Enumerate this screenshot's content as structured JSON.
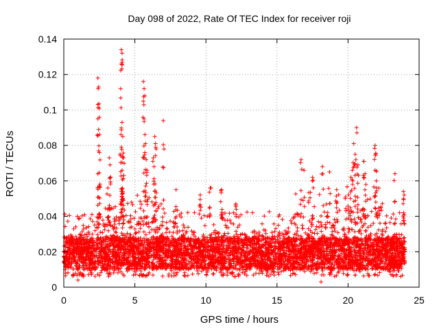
{
  "chart_data": {
    "type": "scatter",
    "title": "Day 098 of 2022, Rate Of TEC Index for receiver roji",
    "xlabel": "GPS time / hours",
    "ylabel": "ROTI / TECUs",
    "xlim": [
      0,
      25
    ],
    "ylim": [
      0,
      0.14
    ],
    "xticks": [
      0,
      5,
      10,
      15,
      20,
      25
    ],
    "xtick_labels": [
      "0",
      "5",
      "10",
      "15",
      "20",
      "25"
    ],
    "yticks": [
      0,
      0.02,
      0.04,
      0.06,
      0.08,
      0.1,
      0.12,
      0.14
    ],
    "ytick_labels": [
      "0",
      "0.02",
      "0.04",
      "0.06",
      "0.08",
      "0.1",
      "0.12",
      "0.14"
    ],
    "grid": true,
    "marker": "+",
    "color": "#ff0000",
    "series": [
      {
        "name": "ROTI",
        "dense_band": {
          "x_range": [
            0,
            24
          ],
          "y_min": 0.006,
          "y_max": 0.035,
          "typical": 0.018
        },
        "peaks": [
          [
            2.4,
            0.118
          ],
          [
            2.45,
            0.113
          ],
          [
            2.5,
            0.101
          ],
          [
            2.4,
            0.095
          ],
          [
            2.45,
            0.089
          ],
          [
            2.5,
            0.076
          ],
          [
            2.4,
            0.064
          ],
          [
            3.2,
            0.073
          ],
          [
            3.25,
            0.069
          ],
          [
            3.3,
            0.062
          ],
          [
            3.1,
            0.056
          ],
          [
            4.05,
            0.134
          ],
          [
            4.1,
            0.132
          ],
          [
            4.05,
            0.126
          ],
          [
            4.0,
            0.112
          ],
          [
            4.1,
            0.093
          ],
          [
            4.15,
            0.085
          ],
          [
            4.05,
            0.079
          ],
          [
            4.2,
            0.073
          ],
          [
            4.1,
            0.066
          ],
          [
            4.15,
            0.054
          ],
          [
            5.6,
            0.116
          ],
          [
            5.65,
            0.112
          ],
          [
            5.7,
            0.108
          ],
          [
            5.6,
            0.105
          ],
          [
            5.65,
            0.095
          ],
          [
            5.75,
            0.081
          ],
          [
            5.8,
            0.072
          ],
          [
            5.85,
            0.066
          ],
          [
            6.4,
            0.085
          ],
          [
            6.45,
            0.081
          ],
          [
            6.5,
            0.078
          ],
          [
            6.3,
            0.073
          ],
          [
            6.35,
            0.068
          ],
          [
            7.0,
            0.094
          ],
          [
            7.05,
            0.078
          ],
          [
            7.9,
            0.055
          ],
          [
            9.6,
            0.052
          ],
          [
            10.3,
            0.056
          ],
          [
            11.1,
            0.055
          ],
          [
            12.1,
            0.047
          ],
          [
            16.7,
            0.072
          ],
          [
            16.9,
            0.066
          ],
          [
            17.5,
            0.062
          ],
          [
            18.2,
            0.068
          ],
          [
            18.7,
            0.065
          ],
          [
            19.2,
            0.055
          ],
          [
            20.4,
            0.081
          ],
          [
            20.5,
            0.075
          ],
          [
            20.55,
            0.072
          ],
          [
            20.6,
            0.09
          ],
          [
            20.7,
            0.069
          ],
          [
            20.3,
            0.066
          ],
          [
            20.2,
            0.062
          ],
          [
            21.1,
            0.071
          ],
          [
            21.2,
            0.064
          ],
          [
            21.9,
            0.08
          ],
          [
            21.95,
            0.075
          ],
          [
            21.9,
            0.066
          ],
          [
            22.0,
            0.056
          ],
          [
            23.3,
            0.064
          ],
          [
            23.9,
            0.054
          ],
          [
            23.95,
            0.052
          ]
        ]
      }
    ]
  }
}
